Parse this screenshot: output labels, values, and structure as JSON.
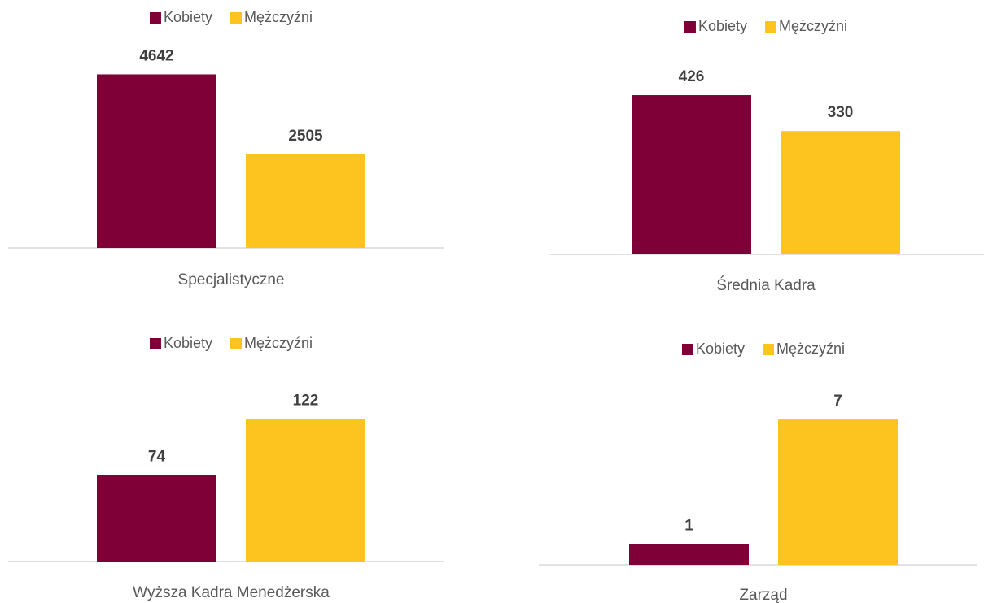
{
  "chart_data": [
    {
      "type": "bar",
      "categories": [
        "Specjalistyczne"
      ],
      "ylim": [
        0,
        5000
      ],
      "legend": "top",
      "series": [
        {
          "name": "Kobiety",
          "color": "#7f0037",
          "values": [
            4642
          ]
        },
        {
          "name": "Mężczyźni",
          "color": "#fdc31e",
          "values": [
            2505
          ]
        }
      ]
    },
    {
      "type": "bar",
      "categories": [
        "Średnia Kadra"
      ],
      "ylim": [
        0,
        500
      ],
      "legend": "top",
      "series": [
        {
          "name": "Kobiety",
          "color": "#7f0037",
          "values": [
            426
          ]
        },
        {
          "name": "Mężczyźni",
          "color": "#fdc31e",
          "values": [
            330
          ]
        }
      ]
    },
    {
      "type": "bar",
      "categories": [
        "Wyższa Kadra Menedżerska"
      ],
      "ylim": [
        0,
        160
      ],
      "legend": "top",
      "series": [
        {
          "name": "Kobiety",
          "color": "#7f0037",
          "values": [
            74
          ]
        },
        {
          "name": "Mężczyźni",
          "color": "#fdc31e",
          "values": [
            122
          ]
        }
      ]
    },
    {
      "type": "bar",
      "categories": [
        "Zarząd"
      ],
      "ylim": [
        0,
        9
      ],
      "legend": "top",
      "series": [
        {
          "name": "Kobiety",
          "color": "#7f0037",
          "values": [
            1
          ]
        },
        {
          "name": "Mężczyźni",
          "color": "#fdc31e",
          "values": [
            7
          ]
        }
      ]
    }
  ]
}
